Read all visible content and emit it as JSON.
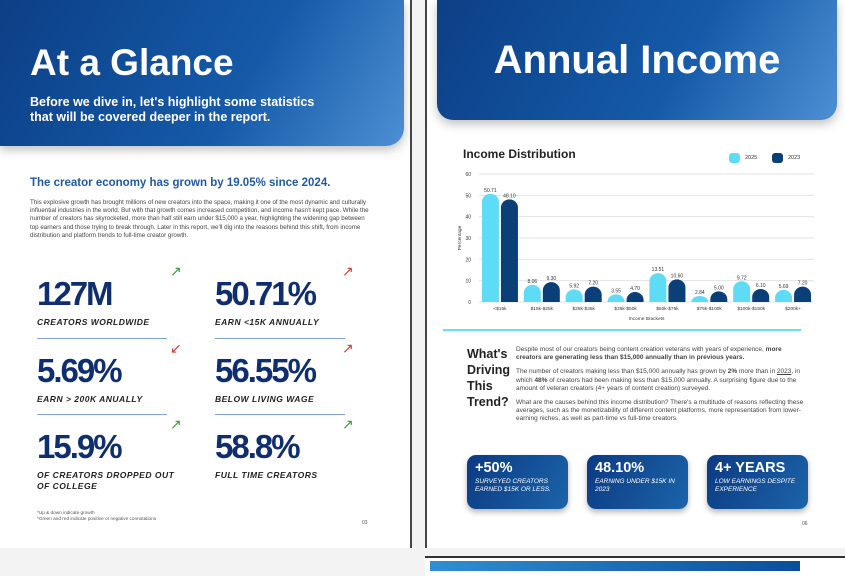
{
  "page_left": {
    "title": "At a Glance",
    "subtitle": "Before we dive in, let's highlight some statistics that will be covered deeper in the report.",
    "lead": "The creator economy has grown by 19.05% since 2024.",
    "paragraph": "This explosive growth has brought millions of new creators into the space, making it one of the most dynamic and culturally influential industries in the world. But with that growth comes increased competition, and income hasn't kept pace. While the number of creators has skyrocketed, more than half still earn under $15,000 a year, highlighting the widening gap between top earners and those trying to break through. Later in this report, we'll dig into the reasons behind this shift, from income distribution and platform trends to full-time creator growth.",
    "stats": [
      {
        "value": "127M",
        "label": "CREATORS WORLDWIDE",
        "arrow": "up",
        "color": "#3a9a3a"
      },
      {
        "value": "50.71%",
        "label": "EARN <15K ANNUALLY",
        "arrow": "up",
        "color": "#d93a2b"
      },
      {
        "value": "5.69%",
        "label": "EARN > 200K ANUALLY",
        "arrow": "down",
        "color": "#d93a2b"
      },
      {
        "value": "56.55%",
        "label": "BELOW LIVING WAGE",
        "arrow": "up",
        "color": "#d93a2b"
      },
      {
        "value": "15.9%",
        "label": "OF CREATORS DROPPED OUT OF COLLEGE",
        "arrow": "up",
        "color": "#3a9a3a"
      },
      {
        "value": "58.8%",
        "label": "FULL TIME CREATORS",
        "arrow": "up",
        "color": "#3a9a3a"
      }
    ],
    "notes": [
      "*Up & down indicate growth",
      "*Green and red indicate positive or negative connotations"
    ],
    "page_number": "03"
  },
  "page_right": {
    "title": "Annual Income",
    "heading": "What's Driving This Trend?",
    "p1_a": "Despite most of our creators being content creation veterans with years of experience, ",
    "p1_b": "more creators are generating less than $15,000 annually than in previous years.",
    "p2_a": "The number of creators making less than $15,000 annually has grown by ",
    "p2_b": "2%",
    "p2_c": " more than in ",
    "p2_d": "2023",
    "p2_e": ", in which ",
    "p2_f": "48%",
    "p2_g": " of creators had been making less than $15,000 annually. A surprising figure due to the amount of veteran creators (4+ years of content creation) surveyed.",
    "p3": "What are the causes behind this income distribution? There's a multitude of reasons reflecting these averages, such as the monetizability of different content platforms, more representation from lower-earning niches, as well as part-time vs full-time creators.",
    "cards": [
      {
        "value": "+50%",
        "label": "SURVEYED CREATORS EARNED $15K OR LESS."
      },
      {
        "value": "48.10%",
        "label": "EARNING UNDER $15K IN 2023"
      },
      {
        "value": "4+ YEARS",
        "label": "LOW EARNINGS DESPITE EXPERIENCE"
      }
    ],
    "page_number": "06"
  },
  "chart_data": {
    "type": "bar",
    "title": "Income Distribution",
    "xlabel": "Income Brackets",
    "ylabel": "Percentage",
    "ylim": [
      0,
      60
    ],
    "yticks": [
      0,
      10,
      20,
      30,
      40,
      50,
      60
    ],
    "grid": true,
    "legend": "top-right",
    "categories": [
      "<$15k",
      "$15k-$25k",
      "$25k-$35k",
      "$35k-$50k",
      "$50k-$75k",
      "$75k-$100k",
      "$100k-$150k",
      "$200k+"
    ],
    "series": [
      {
        "name": "2025",
        "color": "#5fdcf5",
        "values": [
          50.71,
          8.06,
          5.92,
          3.55,
          13.51,
          2.84,
          9.72,
          5.69
        ]
      },
      {
        "name": "2023",
        "color": "#0b3f78",
        "values": [
          48.1,
          9.3,
          7.2,
          4.7,
          10.6,
          5.0,
          6.1,
          7.2
        ]
      }
    ]
  }
}
